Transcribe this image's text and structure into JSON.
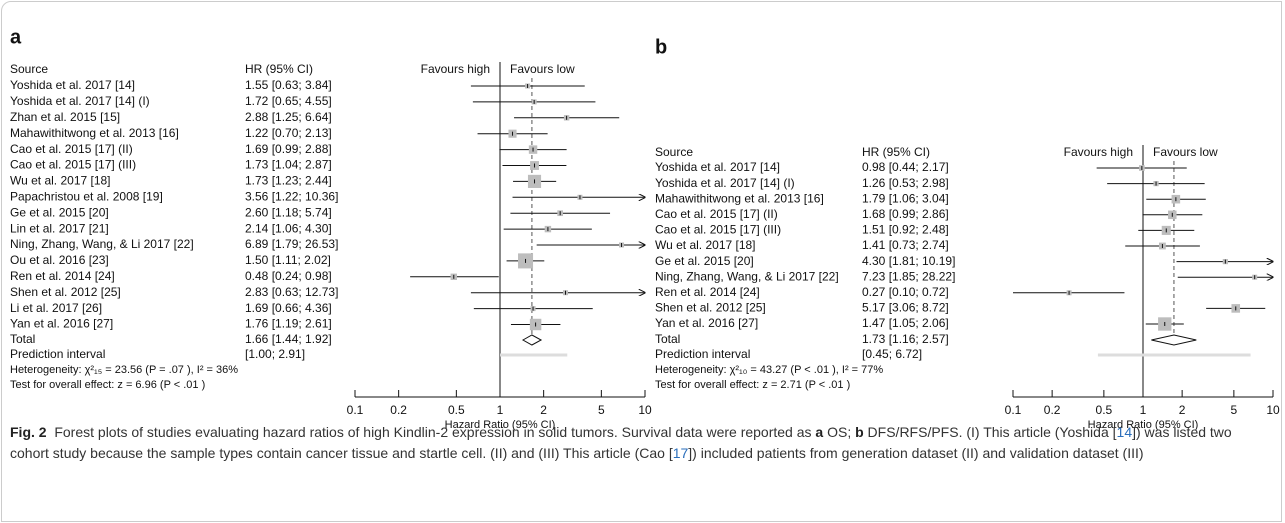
{
  "chart_data": [
    {
      "type": "forest",
      "panel": "a",
      "source_header": "Source",
      "hr_header": "HR (95% CI)",
      "favours_left": "Favours high",
      "favours_right": "Favours low",
      "categories": [
        "Yoshida et al. 2017 [14]",
        "Yoshida et al. 2017 [14] (I)",
        "Zhan et al. 2015 [15]",
        "Mahawithitwong et al. 2013 [16]",
        "Cao et al. 2015 [17] (II)",
        "Cao et al. 2015 [17] (III)",
        "Wu et al. 2017 [18]",
        "Papachristou et al. 2008 [19]",
        "Ge et al. 2015 [20]",
        "Lin et al. 2017 [21]",
        "Ning, Zhang, Wang, & Li 2017 [22]",
        "Ou et al. 2016 [23]",
        "Ren et al. 2014 [24]",
        "Shen et al. 2012 [25]",
        "Li et al. 2017 [26]",
        "Yan et al. 2016 [27]"
      ],
      "values": [
        1.55,
        1.72,
        2.88,
        1.22,
        1.69,
        1.73,
        1.73,
        3.56,
        2.6,
        2.14,
        6.89,
        1.5,
        0.48,
        2.83,
        1.69,
        1.76
      ],
      "lower": [
        0.63,
        0.65,
        1.25,
        0.7,
        0.99,
        1.04,
        1.23,
        1.22,
        1.18,
        1.06,
        1.79,
        1.11,
        0.24,
        0.63,
        0.66,
        1.19
      ],
      "upper": [
        3.84,
        4.55,
        6.64,
        2.13,
        2.88,
        2.87,
        2.44,
        10.36,
        5.74,
        4.3,
        26.53,
        2.02,
        0.98,
        12.73,
        4.36,
        2.61
      ],
      "value_labels": [
        "1.55 [0.63; 3.84]",
        "1.72 [0.65; 4.55]",
        "2.88 [1.25; 6.64]",
        "1.22 [0.70; 2.13]",
        "1.69 [0.99; 2.88]",
        "1.73 [1.04; 2.87]",
        "1.73 [1.23; 2.44]",
        "3.56 [1.22; 10.36]",
        "2.60 [1.18; 5.74]",
        "2.14 [1.06; 4.30]",
        "6.89 [1.79; 26.53]",
        "1.50 [1.11; 2.02]",
        "0.48 [0.24; 0.98]",
        "2.83 [0.63; 12.73]",
        "1.69 [0.66; 4.36]",
        "1.76 [1.19; 2.61]"
      ],
      "total": {
        "label": "Total",
        "value": 1.66,
        "lower": 1.44,
        "upper": 1.92,
        "value_label": "1.66 [1.44; 1.92]"
      },
      "prediction": {
        "label": "Prediction interval",
        "lower": 1.0,
        "upper": 2.91,
        "value_label": "[1.00; 2.91]"
      },
      "heterogeneity": "Heterogeneity: χ²₁₅ = 23.56  (P = .07 ), I² = 36%",
      "overall_test": "Test for overall effect:  z = 6.96  (P < .01 )",
      "xlabel": "Hazard Ratio (95% CI)",
      "log_x": true,
      "xlim": [
        0.1,
        10
      ],
      "xticks": [
        0.1,
        0.2,
        0.5,
        1,
        2,
        5,
        10
      ],
      "reference_line": 1,
      "box_color": "#bdbdbd"
    },
    {
      "type": "forest",
      "panel": "b",
      "source_header": "Source",
      "hr_header": "HR (95% CI)",
      "favours_left": "Favours high",
      "favours_right": "Favours low",
      "categories": [
        "Yoshida et al. 2017 [14]",
        "Yoshida et al. 2017 [14] (I)",
        "Mahawithitwong et al. 2013 [16]",
        "Cao et al. 2015 [17] (II)",
        "Cao et al. 2015 [17] (III)",
        "Wu et al. 2017 [18]",
        "Ge et al. 2015 [20]",
        "Ning, Zhang, Wang, & Li 2017 [22]",
        "Ren et al. 2014 [24]",
        "Shen et al. 2012 [25]",
        "Yan et al. 2016 [27]"
      ],
      "values": [
        0.98,
        1.26,
        1.79,
        1.68,
        1.51,
        1.41,
        4.3,
        7.23,
        0.27,
        5.17,
        1.47
      ],
      "lower": [
        0.44,
        0.53,
        1.06,
        0.99,
        0.92,
        0.73,
        1.81,
        1.85,
        0.1,
        3.06,
        1.05
      ],
      "upper": [
        2.17,
        2.98,
        3.04,
        2.86,
        2.48,
        2.74,
        10.19,
        28.22,
        0.72,
        8.72,
        2.06
      ],
      "value_labels": [
        "0.98 [0.44; 2.17]",
        "1.26 [0.53; 2.98]",
        "1.79 [1.06; 3.04]",
        "1.68 [0.99; 2.86]",
        "1.51 [0.92; 2.48]",
        "1.41 [0.73; 2.74]",
        "4.30 [1.81; 10.19]",
        "7.23 [1.85; 28.22]",
        "0.27 [0.10; 0.72]",
        "5.17 [3.06; 8.72]",
        "1.47 [1.05; 2.06]"
      ],
      "total": {
        "label": "Total",
        "value": 1.73,
        "lower": 1.16,
        "upper": 2.57,
        "value_label": "1.73 [1.16; 2.57]"
      },
      "prediction": {
        "label": "Prediction interval",
        "lower": 0.45,
        "upper": 6.72,
        "value_label": "[0.45; 6.72]"
      },
      "heterogeneity": "Heterogeneity: χ²₁₀ = 43.27  (P < .01 ), I² = 77%",
      "overall_test": "Test for overall effect:   z = 2.71  (P < .01 )",
      "xlabel": "Hazard Ratio (95% CI)",
      "log_x": true,
      "xlim": [
        0.1,
        10
      ],
      "xticks": [
        0.1,
        0.2,
        0.5,
        1,
        2,
        5,
        10
      ],
      "reference_line": 1,
      "box_color": "#bdbdbd"
    }
  ],
  "caption": {
    "parts": [
      {
        "text": "Fig. 2",
        "style": "bold"
      },
      {
        "text": "  Forest plots of studies evaluating hazard ratios of high Kindlin-2 expression in solid tumors. Survival data were reported as ",
        "style": "plain"
      },
      {
        "text": "a",
        "style": "bold"
      },
      {
        "text": " OS; ",
        "style": "plain"
      },
      {
        "text": "b",
        "style": "bold"
      },
      {
        "text": " DFS/RFS/PFS. (I) This article (Yoshida [",
        "style": "plain"
      },
      {
        "text": "14",
        "style": "link"
      },
      {
        "text": "]) was listed two cohort study because the sample types contain cancer tissue and startle cell. (II) and (III) This article (Cao [",
        "style": "plain"
      },
      {
        "text": "17",
        "style": "link"
      },
      {
        "text": "]) included patients from generation dataset (II) and validation dataset (III)",
        "style": "plain"
      }
    ]
  }
}
